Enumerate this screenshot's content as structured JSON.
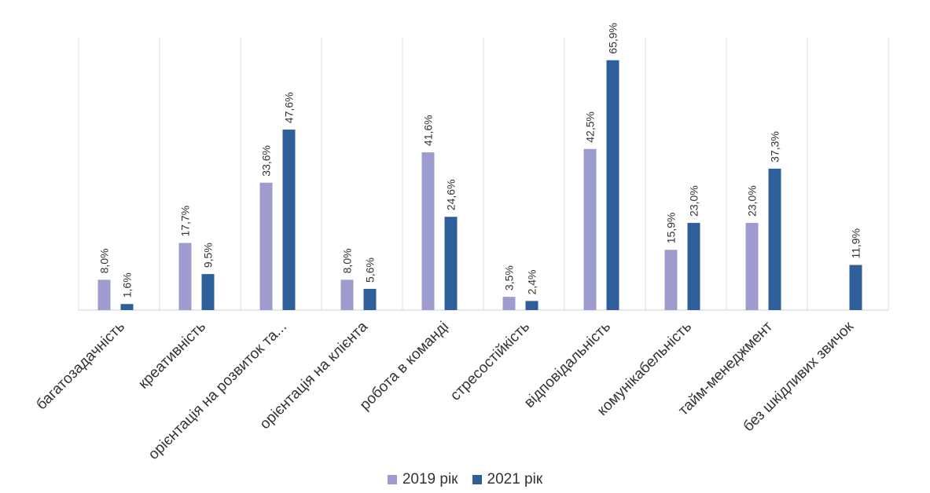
{
  "chart_data": {
    "type": "bar",
    "categories": [
      "багатозадачність",
      "креативність",
      "орієнтація на розвиток та...",
      "орієнтація на клієнта",
      "робота в команді",
      "стресостійкість",
      "відповідальність",
      "комунікабельність",
      "тайм-менеджмент",
      "без шкідливих звичок"
    ],
    "series": [
      {
        "name": "2019 рік",
        "color": "#9e9ccf",
        "values": [
          8.0,
          17.7,
          33.6,
          8.0,
          41.6,
          3.5,
          42.5,
          15.9,
          23.0,
          null
        ],
        "labels": [
          "8,0%",
          "17,7%",
          "33,6%",
          "8,0%",
          "41,6%",
          "3,5%",
          "42,5%",
          "15,9%",
          "23,0%",
          ""
        ]
      },
      {
        "name": "2021 рік",
        "color": "#2e5f9a",
        "values": [
          1.6,
          9.5,
          47.6,
          5.6,
          24.6,
          2.4,
          65.9,
          23.0,
          37.3,
          11.9
        ],
        "labels": [
          "1,6%",
          "9,5%",
          "47,6%",
          "5,6%",
          "24,6%",
          "2,4%",
          "65,9%",
          "23,0%",
          "37,3%",
          "11,9%"
        ]
      }
    ],
    "ylim": [
      0,
      70
    ],
    "grid": "vertical",
    "legend_position": "bottom"
  }
}
